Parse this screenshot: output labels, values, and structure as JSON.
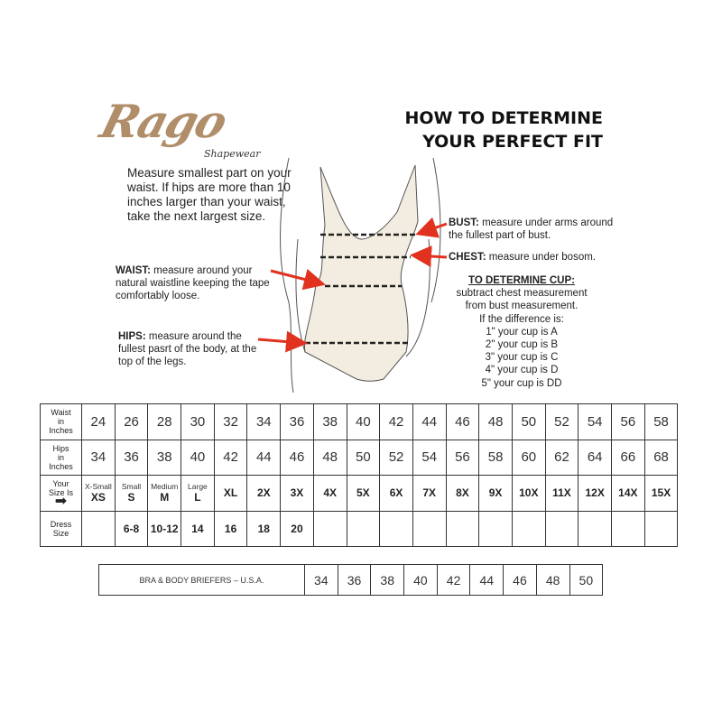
{
  "logo": {
    "brand": "Rago",
    "sub": "Shapewear"
  },
  "title": {
    "line1": "HOW TO DETERMINE",
    "line2": "YOUR PERFECT FIT"
  },
  "intro": "Measure smallest part on your waist. If hips are more than 10 inches larger than your waist, take the next largest size.",
  "notes": {
    "bust": {
      "label": "BUST:",
      "text": " measure under arms around the fullest part of bust."
    },
    "chest": {
      "label": "CHEST:",
      "text": " measure under bosom."
    },
    "waist": {
      "label": "WAIST:",
      "text": " measure around your natural waistline keeping the tape comfortably loose."
    },
    "hips": {
      "label": "HIPS:",
      "text": " measure around the fullest pasrt of the body, at the top of the legs."
    }
  },
  "cup": {
    "heading": "TO DETERMINE CUP:",
    "lines": [
      "subtract chest measurement",
      "from bust measurement.",
      "If the difference is:",
      "1\" your cup is A",
      "2\" your cup is B",
      "3\" your cup is C",
      "4\" your cup is D",
      "5\" your cup is DD"
    ]
  },
  "colors": {
    "arrow": "#e0321e",
    "body": "#f3ece0",
    "logo": "#b08e6a"
  },
  "size_table": {
    "waist_header": [
      "Waist",
      "in",
      "Inches"
    ],
    "hips_header": [
      "Hips",
      "in",
      "Inches"
    ],
    "size_header": [
      "Your",
      "Size Is"
    ],
    "dress_header": [
      "Dress",
      "Size"
    ],
    "waist": [
      "24",
      "26",
      "28",
      "30",
      "32",
      "34",
      "36",
      "38",
      "40",
      "42",
      "44",
      "46",
      "48",
      "50",
      "52",
      "54",
      "56",
      "58"
    ],
    "hips": [
      "34",
      "36",
      "38",
      "40",
      "42",
      "44",
      "46",
      "48",
      "50",
      "52",
      "54",
      "56",
      "58",
      "60",
      "62",
      "64",
      "66",
      "68"
    ],
    "size_names": [
      "X-Small",
      "Small",
      "Medium",
      "Large",
      "",
      "",
      "",
      "",
      "",
      "",
      "",
      "",
      "",
      "",
      "",
      "",
      "",
      ""
    ],
    "sizes": [
      "XS",
      "S",
      "M",
      "L",
      "XL",
      "2X",
      "3X",
      "4X",
      "5X",
      "6X",
      "7X",
      "8X",
      "9X",
      "10X",
      "11X",
      "12X",
      "14X",
      "15X"
    ],
    "dress": [
      "",
      "6-8",
      "10-12",
      "14",
      "16",
      "18",
      "20",
      "",
      "",
      "",
      "",
      "",
      "",
      "",
      "",
      "",
      "",
      ""
    ]
  },
  "bra_table": {
    "label": "BRA & BODY BRIEFERS – U.S.A.",
    "sizes": [
      "34",
      "36",
      "38",
      "40",
      "42",
      "44",
      "46",
      "48",
      "50"
    ]
  }
}
